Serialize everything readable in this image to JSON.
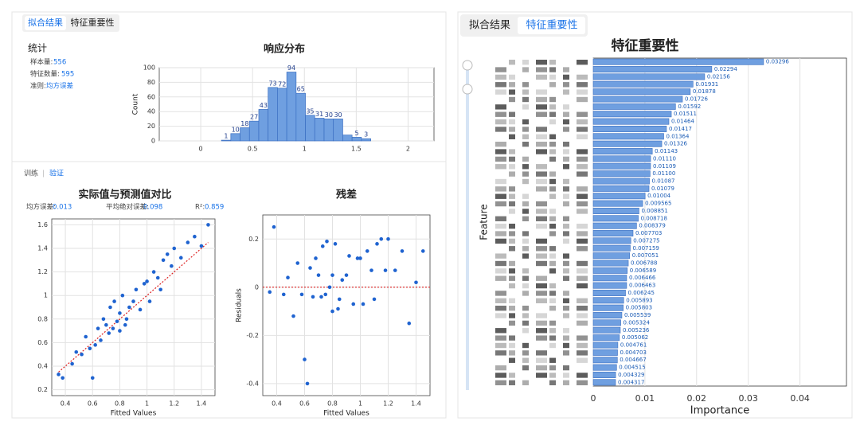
{
  "left_panel": {
    "tabs": [
      "拟合结果",
      "特征重要性"
    ],
    "stats": {
      "title": "统计",
      "items": [
        {
          "label": "样本量:",
          "value": 556
        },
        {
          "label": "特征数量:",
          "value": 595
        },
        {
          "label": "准则:",
          "value": "均方误差"
        }
      ]
    },
    "subtabs": [
      "训练",
      "验证"
    ],
    "metrics": [
      {
        "label": "均方误差:",
        "value": 0.013
      },
      {
        "label": "平均绝对误差:",
        "value": 0.098
      },
      {
        "label": "R²:",
        "value": 0.859
      }
    ]
  },
  "right_panel": {
    "tabs": [
      "拟合结果",
      "特征重要性"
    ]
  },
  "chart_data": [
    {
      "type": "histogram",
      "title": "响应分布",
      "y_label": "Count",
      "bins": [
        0.2,
        0.29,
        0.38,
        0.47,
        0.56,
        0.65,
        0.74,
        0.83,
        0.92,
        1.01,
        1.1,
        1.19,
        1.28,
        1.37,
        1.46,
        1.55,
        1.64
      ],
      "values": [
        1,
        10,
        18,
        27,
        43,
        73,
        72,
        94,
        65,
        35,
        31,
        30,
        30,
        8,
        5,
        3
      ],
      "value_labels": [
        "1",
        "10",
        "18",
        "27",
        "43",
        "73",
        "72",
        "94",
        "65",
        "35",
        "31",
        "30",
        "30",
        null,
        "5",
        "3"
      ],
      "color": "#6f9fe0",
      "xlim": [
        -0.4,
        2.25
      ],
      "xticks": [
        0,
        0.5,
        1,
        1.5,
        2
      ],
      "ylim": [
        0,
        100
      ],
      "yticks": [
        0,
        20,
        40,
        60,
        80,
        100
      ],
      "grid": true
    },
    {
      "type": "scatter",
      "title": "实际值与预测值对比",
      "x_label": "Fitted Values",
      "color": "#1f63d0",
      "x": [
        0.35,
        0.38,
        0.45,
        0.48,
        0.52,
        0.55,
        0.58,
        0.6,
        0.62,
        0.64,
        0.66,
        0.68,
        0.7,
        0.72,
        0.73,
        0.75,
        0.76,
        0.78,
        0.8,
        0.8,
        0.82,
        0.84,
        0.85,
        0.87,
        0.9,
        0.92,
        0.95,
        0.98,
        1.0,
        1.02,
        1.05,
        1.08,
        1.1,
        1.12,
        1.15,
        1.18,
        1.2,
        1.25,
        1.3,
        1.35,
        1.4,
        1.45
      ],
      "values": [
        0.33,
        0.3,
        0.42,
        0.52,
        0.5,
        0.65,
        0.55,
        0.3,
        0.58,
        0.72,
        0.62,
        0.8,
        0.75,
        0.68,
        0.9,
        0.72,
        0.95,
        0.78,
        0.7,
        0.85,
        1.0,
        0.75,
        0.8,
        0.9,
        0.95,
        1.05,
        0.88,
        1.1,
        1.12,
        0.95,
        1.2,
        1.15,
        1.05,
        1.3,
        1.35,
        1.25,
        1.4,
        1.32,
        1.45,
        1.5,
        1.42,
        1.6
      ],
      "xlim": [
        0.3,
        1.5
      ],
      "xticks": [
        0.4,
        0.6,
        0.8,
        1,
        1.2,
        1.4
      ],
      "ylim": [
        0.15,
        1.65
      ],
      "yticks": [
        0.2,
        0.4,
        0.6,
        0.8,
        1,
        1.2,
        1.4,
        1.6
      ],
      "grid": true,
      "reference": "diagonal"
    },
    {
      "type": "scatter",
      "title": "残差",
      "x_label": "Fitted Values",
      "y_label": "Residuals",
      "color": "#1f63d0",
      "x": [
        0.35,
        0.38,
        0.45,
        0.48,
        0.52,
        0.55,
        0.58,
        0.6,
        0.62,
        0.64,
        0.66,
        0.68,
        0.7,
        0.72,
        0.73,
        0.75,
        0.76,
        0.78,
        0.8,
        0.8,
        0.82,
        0.84,
        0.85,
        0.87,
        0.9,
        0.92,
        0.95,
        0.98,
        1.0,
        1.02,
        1.05,
        1.08,
        1.1,
        1.12,
        1.15,
        1.18,
        1.2,
        1.25,
        1.3,
        1.35,
        1.4,
        1.45
      ],
      "values": [
        -0.02,
        0.25,
        -0.03,
        0.04,
        -0.12,
        0.1,
        -0.03,
        -0.3,
        -0.4,
        0.08,
        -0.04,
        0.12,
        0.05,
        -0.04,
        0.17,
        -0.03,
        0.19,
        0.0,
        -0.1,
        0.05,
        0.18,
        -0.09,
        -0.05,
        0.03,
        0.05,
        0.13,
        -0.07,
        0.12,
        0.12,
        -0.07,
        0.15,
        0.07,
        -0.05,
        0.18,
        0.2,
        0.07,
        0.2,
        0.07,
        0.15,
        -0.15,
        0.02,
        0.15
      ],
      "xlim": [
        0.3,
        1.5
      ],
      "xticks": [
        0.4,
        0.6,
        0.8,
        1,
        1.2,
        1.4
      ],
      "ylim": [
        -0.45,
        0.3
      ],
      "yticks": [
        -0.4,
        -0.2,
        0,
        0.2
      ],
      "grid": true,
      "reference": "zero"
    },
    {
      "type": "barh",
      "title": "特征重要性",
      "x_label": "Importance",
      "y_label": "Feature",
      "color": "#6f9fe0",
      "categories": [
        null,
        null,
        null,
        null,
        null,
        null,
        null,
        null,
        null,
        null,
        null,
        null,
        null,
        null,
        null,
        null,
        null,
        null,
        null,
        null,
        null,
        null,
        null,
        null,
        null,
        null,
        null,
        null,
        null,
        null,
        null,
        null,
        null,
        null,
        null,
        null,
        null,
        null,
        null,
        null,
        null,
        null,
        null,
        null
      ],
      "values": [
        0.03296,
        0.02294,
        0.02156,
        0.01931,
        0.01878,
        0.01726,
        0.01592,
        0.01511,
        0.01464,
        0.01417,
        0.01364,
        0.01326,
        0.01143,
        0.0111,
        0.01109,
        0.011,
        0.01087,
        0.01079,
        0.01004,
        0.009565,
        0.008851,
        0.008718,
        0.008379,
        0.007703,
        0.007275,
        0.007159,
        0.007051,
        0.006788,
        0.006589,
        0.006466,
        0.006463,
        0.006245,
        0.005893,
        0.005803,
        0.005539,
        0.005324,
        0.005236,
        0.005062,
        0.004761,
        0.004703,
        0.004667,
        0.004515,
        0.004329,
        0.004317
      ],
      "value_labels": [
        "0.03296",
        "0.02294",
        "0.02156",
        "0.01931",
        "0.01878",
        "0.01726",
        "0.01592",
        "0.01511",
        "0.01464",
        "0.01417",
        "0.01364",
        "0.01326",
        "0.01143",
        "0.01110",
        "0.01109",
        "0.01100",
        "0.01087",
        "0.01079",
        "0.01004",
        "0.009565",
        "0.008851",
        "0.008718",
        "0.008379",
        "0.007703",
        "0.007275",
        "0.007159",
        "0.007051",
        "0.006788",
        "0.006589",
        "0.006466",
        "0.006463",
        "0.006245",
        "0.005893",
        "0.005803",
        "0.005539",
        "0.005324",
        "0.005236",
        "0.005062",
        "0.004761",
        "0.004703",
        "0.004667",
        "0.004515",
        "0.004329",
        "0.004317"
      ],
      "xlim": [
        0,
        0.049
      ],
      "xticks": [
        0,
        0.01,
        0.02,
        0.03,
        0.04
      ],
      "grid": true
    }
  ]
}
